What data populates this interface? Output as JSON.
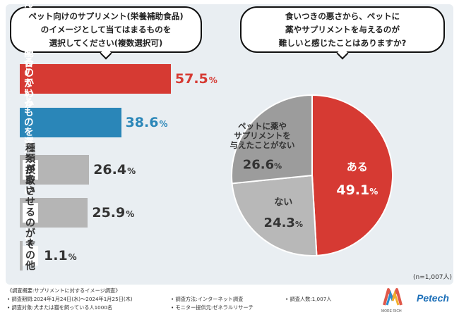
{
  "left_question": {
    "text": "ペット向けのサプリメント(栄養補助食品)\nのイメージとして当てはまるものを\n選択してください(複数選択可)"
  },
  "right_question": {
    "text": "食いつきの悪さから、ペットに\n薬やサプリメントを与えるのが\n難しいと感じたことはありますか?"
  },
  "colors": {
    "red": "#d63a33",
    "blue": "#2a86b8",
    "gray": "#b5b5b5",
    "pie_red": "#d63a33",
    "pie_gray1": "#9c9c9c",
    "pie_gray2": "#b8b8b8"
  },
  "chart_data": [
    {
      "type": "bar",
      "orientation": "horizontal",
      "title": "ペット向けのサプリメント(栄養補助食品)のイメージとして当てはまるものを選択してください(複数選択可)",
      "categories": [
        "効果があるのか\nわからない",
        "どんな成分を配合\nしているものを選べば\nよいのかわからない",
        "種類が多い",
        "摂取させるのが大変",
        "その他"
      ],
      "values": [
        57.5,
        38.6,
        26.4,
        25.9,
        1.1
      ],
      "unit": "%",
      "value_labels": [
        "57.5",
        "38.6",
        "26.4",
        "25.9",
        "1.1"
      ]
    },
    {
      "type": "pie",
      "title": "食いつきの悪さから、ペットに薬やサプリメントを与えるのが難しいと感じたことはありますか?",
      "categories": [
        "ある",
        "ない",
        "ペットに薬や\nサプリメントを\n与えたことがない"
      ],
      "values": [
        49.1,
        24.3,
        26.6
      ],
      "unit": "%",
      "value_labels": [
        "49.1",
        "24.3",
        "26.6"
      ],
      "n_label": "(n=1,007人)"
    }
  ],
  "footer": {
    "summary": "《調査概要:サプリメントに対するイメージ調査》",
    "period": "• 調査期間:2024年1月24日(水)〜2024年1月25日(木)",
    "method": "• 調査方法:インターネット調査",
    "respondents": "• 調査人数:1,007人",
    "target": "• 調査対象:犬または猫を飼っている人1000名",
    "provider": "• モニター提供元:ゼネラルリサーチ"
  },
  "brand": {
    "logo_caption": "MORE RICH",
    "name": "Petech"
  }
}
